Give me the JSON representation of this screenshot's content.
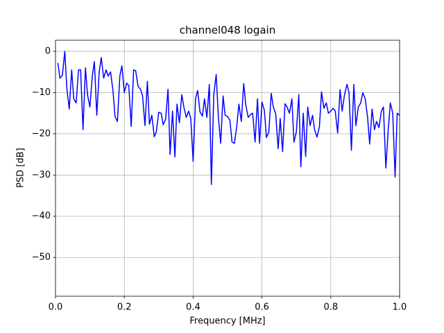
{
  "chart_data": {
    "type": "line",
    "title": "channel048 logain",
    "xlabel": "Frequency [MHz]",
    "ylabel": "PSD [dB]",
    "color": "#0000ff",
    "grid": true,
    "xlim": [
      0,
      1.0
    ],
    "ylim": [
      -59.4,
      2.7
    ],
    "xticks": [
      {
        "value": 0,
        "label": "0.0"
      },
      0.2,
      0.4,
      0.6,
      0.8,
      {
        "value": 1,
        "label": "1.0"
      }
    ],
    "yticks": [
      0,
      {
        "value": -10,
        "label": "−10"
      },
      {
        "value": -20,
        "label": "−20"
      },
      {
        "value": -30,
        "label": "−30"
      },
      {
        "value": -40,
        "label": "−40"
      },
      {
        "value": -50,
        "label": "−50"
      }
    ],
    "x": [
      0.007,
      0.013,
      0.02,
      0.027,
      0.033,
      0.04,
      0.047,
      0.053,
      0.06,
      0.067,
      0.073,
      0.08,
      0.087,
      0.093,
      0.1,
      0.107,
      0.113,
      0.12,
      0.127,
      0.133,
      0.14,
      0.147,
      0.153,
      0.16,
      0.167,
      0.173,
      0.18,
      0.187,
      0.193,
      0.2,
      0.207,
      0.213,
      0.22,
      0.227,
      0.233,
      0.24,
      0.247,
      0.253,
      0.26,
      0.267,
      0.273,
      0.28,
      0.287,
      0.293,
      0.3,
      0.307,
      0.313,
      0.32,
      0.327,
      0.333,
      0.34,
      0.347,
      0.353,
      0.36,
      0.367,
      0.373,
      0.38,
      0.387,
      0.393,
      0.4,
      0.407,
      0.413,
      0.42,
      0.427,
      0.433,
      0.44,
      0.447,
      0.453,
      0.46,
      0.467,
      0.473,
      0.48,
      0.487,
      0.493,
      0.5,
      0.507,
      0.513,
      0.52,
      0.527,
      0.533,
      0.54,
      0.547,
      0.553,
      0.56,
      0.567,
      0.573,
      0.58,
      0.587,
      0.593,
      0.6,
      0.607,
      0.613,
      0.62,
      0.627,
      0.633,
      0.64,
      0.647,
      0.653,
      0.66,
      0.667,
      0.673,
      0.68,
      0.687,
      0.693,
      0.7,
      0.707,
      0.713,
      0.72,
      0.727,
      0.733,
      0.74,
      0.747,
      0.753,
      0.76,
      0.767,
      0.773,
      0.78,
      0.787,
      0.793,
      0.8,
      0.807,
      0.813,
      0.82,
      0.827,
      0.833,
      0.84,
      0.847,
      0.853,
      0.86,
      0.867,
      0.873,
      0.88,
      0.887,
      0.893,
      0.9,
      0.907,
      0.913,
      0.92,
      0.927,
      0.933,
      0.94,
      0.947,
      0.953,
      0.96,
      0.967,
      0.973,
      0.98,
      0.987,
      0.993,
      1.0
    ],
    "values": [
      -2.8,
      -6.5,
      -5.8,
      0,
      -9,
      -14,
      -4.5,
      -11.5,
      -12.5,
      -4.5,
      -4.5,
      -19,
      -4,
      -10.5,
      -13.5,
      -6,
      -2.5,
      -15.5,
      -5,
      -1.5,
      -6.5,
      -4.5,
      -6,
      -5,
      -9.5,
      -15.8,
      -17,
      -6,
      -3.5,
      -10,
      -7.7,
      -8.3,
      -18.2,
      -4.5,
      -4.7,
      -8.5,
      -9.2,
      -10.8,
      -18,
      -7.3,
      -17.7,
      -15.5,
      -20.7,
      -19.5,
      -14.8,
      -15,
      -17.8,
      -16.5,
      -9.2,
      -25,
      -14.5,
      -25.6,
      -12.8,
      -17.3,
      -10.5,
      -13.5,
      -16,
      -14.5,
      -16.2,
      -26.7,
      -11.5,
      -9.5,
      -14.7,
      -15.7,
      -11.5,
      -16,
      -8,
      -32.3,
      -10.5,
      -5.6,
      -15.5,
      -22.3,
      -10.8,
      -15.5,
      -15.8,
      -16.8,
      -22,
      -22.3,
      -18,
      -12.8,
      -17,
      -7.8,
      -13,
      -16,
      -15.3,
      -15,
      -22,
      -11.5,
      -22.3,
      -12.3,
      -14.3,
      -20.9,
      -19.5,
      -10.2,
      -13.5,
      -15.2,
      -23.6,
      -16.3,
      -24.3,
      -12.7,
      -13.5,
      -15,
      -11.5,
      -22,
      -19.5,
      -10.5,
      -28,
      -15,
      -25.5,
      -13.5,
      -18,
      -15.5,
      -19,
      -20.8,
      -18.3,
      -9.8,
      -13.8,
      -12.5,
      -15,
      -14.5,
      -13.8,
      -14.5,
      -19.8,
      -9.3,
      -14.5,
      -10.5,
      -8,
      -10,
      -24,
      -8,
      -18,
      -13.5,
      -12.5,
      -10,
      -11.5,
      -16,
      -22.5,
      -14,
      -19,
      -17,
      -18.5,
      -14.5,
      -13.5,
      -28.3,
      -19,
      -12.5,
      -15,
      -30.5,
      -15,
      -15.5
    ]
  }
}
